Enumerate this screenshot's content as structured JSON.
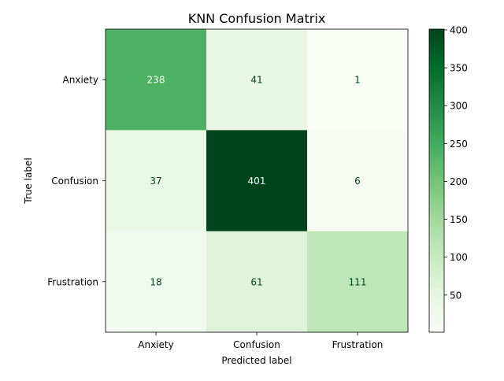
{
  "chart_data": {
    "type": "heatmap",
    "title": "KNN Confusion Matrix",
    "xlabel": "Predicted label",
    "ylabel": "True label",
    "x_categories": [
      "Anxiety",
      "Confusion",
      "Frustration"
    ],
    "y_categories": [
      "Anxiety",
      "Confusion",
      "Frustration"
    ],
    "values": [
      [
        238,
        41,
        1
      ],
      [
        37,
        401,
        6
      ],
      [
        18,
        61,
        111
      ]
    ],
    "colormap": "Greens",
    "colorbar": {
      "vmin": 1,
      "vmax": 401,
      "ticks": [
        50,
        100,
        150,
        200,
        250,
        300,
        350,
        400
      ]
    },
    "grid": false
  }
}
